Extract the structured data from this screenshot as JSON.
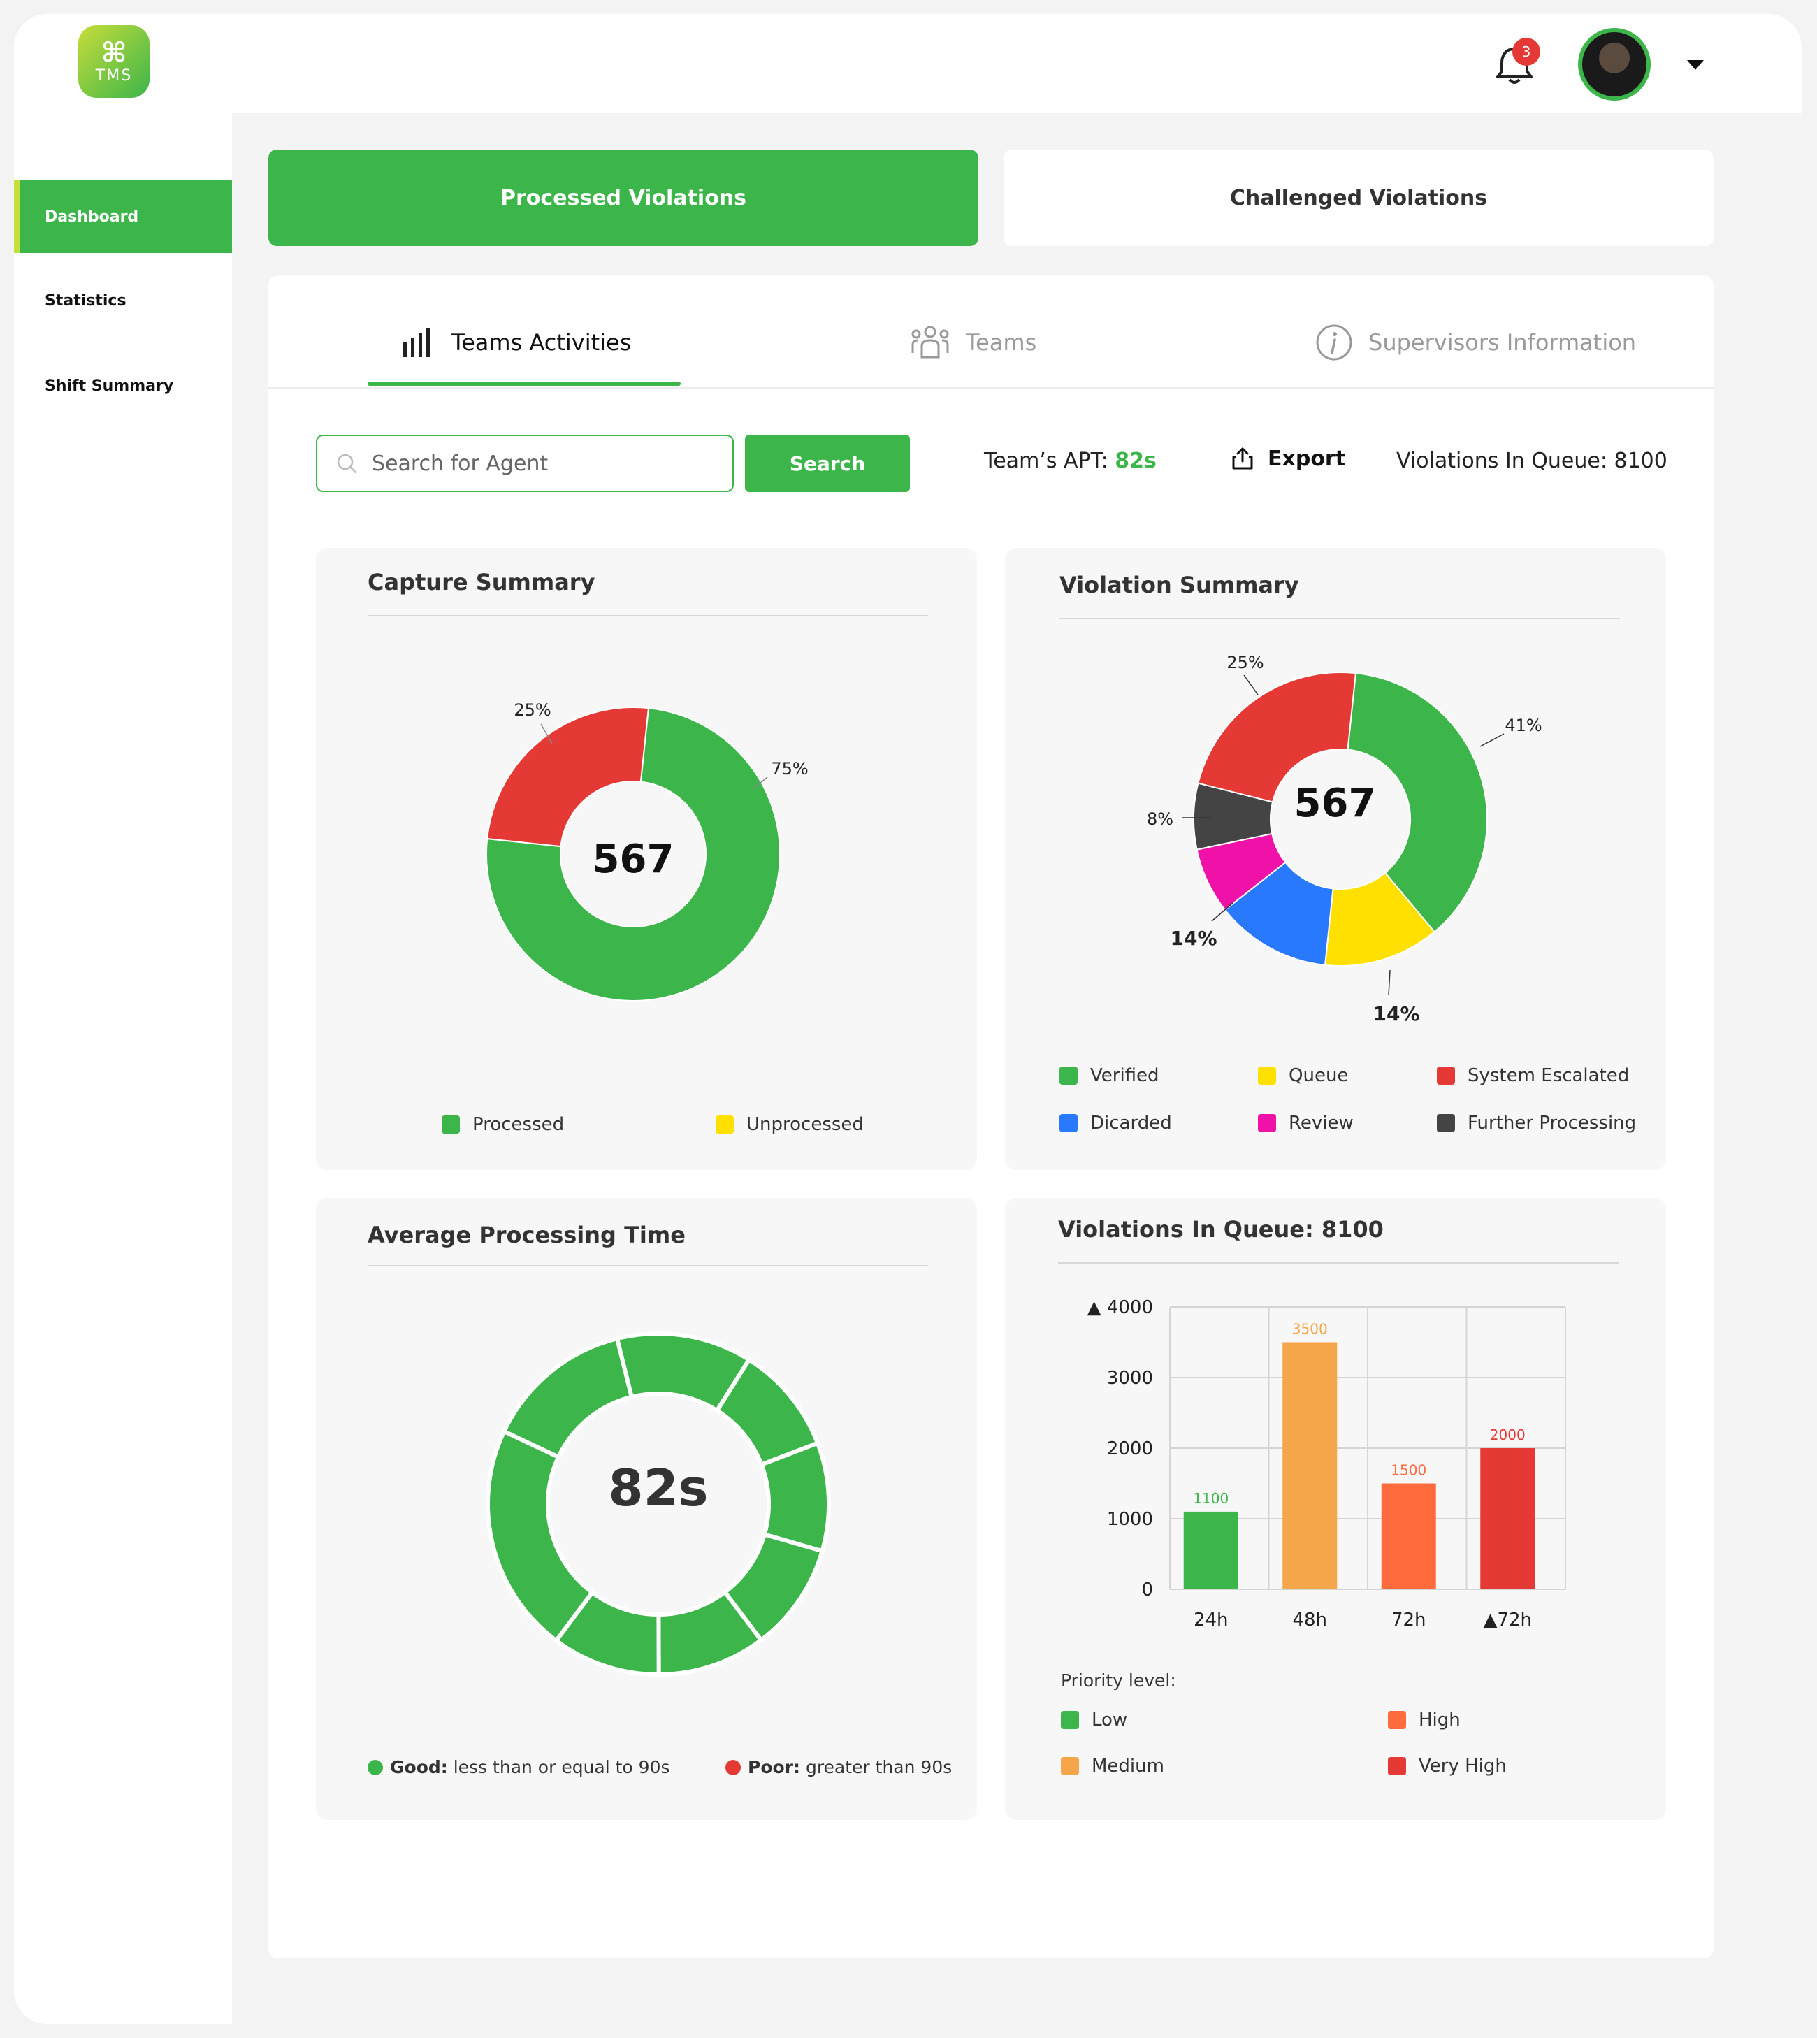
{
  "app": {
    "logo_text": "TMS"
  },
  "header": {
    "notification_count": "3"
  },
  "sidebar": {
    "items": [
      {
        "label": "Dashboard"
      },
      {
        "label": "Statistics"
      },
      {
        "label": "Shift Summary"
      }
    ]
  },
  "main_tabs": {
    "processed": "Processed Violations",
    "challenged": "Challenged Violations"
  },
  "sub_tabs": {
    "activities": "Teams Activities",
    "teams": "Teams",
    "supervisors": "Supervisors Information"
  },
  "toolbar": {
    "search_placeholder": "Search for Agent",
    "search_button": "Search",
    "apt_label": "Team’s APT:",
    "apt_value": "82s",
    "export_label": "Export",
    "queue_text": "Violations In Queue: 8100"
  },
  "capture_summary": {
    "title": "Capture Summary",
    "center_value": "567",
    "labels": [
      "25%",
      "75%"
    ],
    "legend": [
      {
        "label": "Processed",
        "color": "#3cb54a"
      },
      {
        "label": "Unprocessed",
        "color": "#ffe000"
      }
    ]
  },
  "violation_summary": {
    "title": "Violation Summary",
    "center_value": "567",
    "labels": [
      "25%",
      "41%",
      "8%",
      "14%",
      "14%"
    ],
    "legend": [
      {
        "label": "Verified",
        "color": "#3cb54a"
      },
      {
        "label": "Queue",
        "color": "#ffe000"
      },
      {
        "label": "System Escalated",
        "color": "#e53935"
      },
      {
        "label": "Dicarded",
        "color": "#2979ff"
      },
      {
        "label": "Review",
        "color": "#f012a8"
      },
      {
        "label": "Further Processing",
        "color": "#444444"
      }
    ]
  },
  "avg_processing": {
    "title": "Average Processing Time",
    "center_value": "82s",
    "good_label": "Good:",
    "good_text": "less than or equal to 90s",
    "poor_label": "Poor:",
    "poor_text": "greater than 90s",
    "good_color": "#3cb54a",
    "poor_color": "#e53935"
  },
  "queue_chart": {
    "title": "Violations In Queue: 8100",
    "priority_title": "Priority level:",
    "legend": [
      {
        "label": "Low",
        "color": "#3cb54a"
      },
      {
        "label": "High",
        "color": "#ff6b3d"
      },
      {
        "label": "Medium",
        "color": "#f5a54a"
      },
      {
        "label": "Very High",
        "color": "#e53935"
      }
    ]
  },
  "chart_data": [
    {
      "type": "pie",
      "title": "Capture Summary",
      "categories": [
        "Processed",
        "Unprocessed"
      ],
      "values": [
        75,
        25
      ],
      "colors": [
        "#3cb54a",
        "#e53935"
      ],
      "center_label": "567"
    },
    {
      "type": "pie",
      "title": "Violation Summary",
      "categories": [
        "Verified",
        "Queue",
        "Dicarded",
        "Review",
        "Further Processing",
        "System Escalated"
      ],
      "values": [
        41,
        14,
        14,
        8,
        8,
        25
      ],
      "colors": [
        "#3cb54a",
        "#ffe000",
        "#2979ff",
        "#f012a8",
        "#444444",
        "#e53935"
      ],
      "center_label": "567"
    },
    {
      "type": "bar",
      "title": "Violations In Queue: 8100",
      "categories": [
        "24h",
        "48h",
        "72h",
        "▲72h"
      ],
      "values": [
        1100,
        3500,
        1500,
        2000
      ],
      "value_labels": [
        "1100",
        "3500",
        "1500",
        "2000"
      ],
      "colors": [
        "#3cb54a",
        "#f5a54a",
        "#ff6b3d",
        "#e53935"
      ],
      "yticks": [
        "0",
        "1000",
        "2000",
        "3000",
        "▲ 4000"
      ],
      "ylim": [
        0,
        4000
      ],
      "grid": true
    }
  ]
}
